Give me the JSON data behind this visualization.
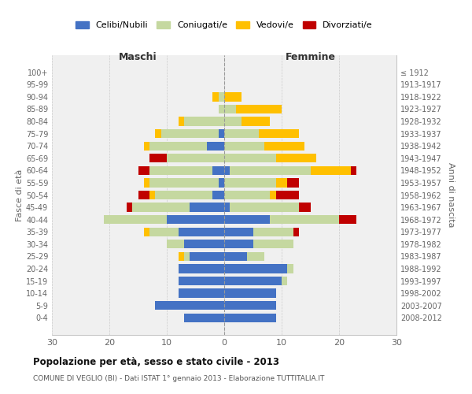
{
  "age_groups": [
    "0-4",
    "5-9",
    "10-14",
    "15-19",
    "20-24",
    "25-29",
    "30-34",
    "35-39",
    "40-44",
    "45-49",
    "50-54",
    "55-59",
    "60-64",
    "65-69",
    "70-74",
    "75-79",
    "80-84",
    "85-89",
    "90-94",
    "95-99",
    "100+"
  ],
  "birth_years": [
    "2008-2012",
    "2003-2007",
    "1998-2002",
    "1993-1997",
    "1988-1992",
    "1983-1987",
    "1978-1982",
    "1973-1977",
    "1968-1972",
    "1963-1967",
    "1958-1962",
    "1953-1957",
    "1948-1952",
    "1943-1947",
    "1938-1942",
    "1933-1937",
    "1928-1932",
    "1923-1927",
    "1918-1922",
    "1913-1917",
    "≤ 1912"
  ],
  "maschi": {
    "celibi": [
      7,
      12,
      8,
      8,
      8,
      6,
      7,
      8,
      10,
      6,
      2,
      1,
      2,
      0,
      3,
      1,
      0,
      0,
      0,
      0,
      0
    ],
    "coniugati": [
      0,
      0,
      0,
      0,
      0,
      1,
      3,
      5,
      11,
      10,
      10,
      12,
      11,
      10,
      10,
      10,
      7,
      1,
      1,
      0,
      0
    ],
    "vedovi": [
      0,
      0,
      0,
      0,
      0,
      1,
      0,
      1,
      0,
      0,
      1,
      1,
      0,
      0,
      1,
      1,
      1,
      0,
      1,
      0,
      0
    ],
    "divorziati": [
      0,
      0,
      0,
      0,
      0,
      0,
      0,
      0,
      0,
      1,
      2,
      0,
      2,
      3,
      0,
      0,
      0,
      0,
      0,
      0,
      0
    ]
  },
  "femmine": {
    "nubili": [
      9,
      9,
      9,
      10,
      11,
      4,
      5,
      5,
      8,
      1,
      0,
      0,
      1,
      0,
      0,
      0,
      0,
      0,
      0,
      0,
      0
    ],
    "coniugate": [
      0,
      0,
      0,
      1,
      1,
      3,
      7,
      7,
      12,
      12,
      8,
      9,
      14,
      9,
      7,
      6,
      3,
      2,
      0,
      0,
      0
    ],
    "vedove": [
      0,
      0,
      0,
      0,
      0,
      0,
      0,
      0,
      0,
      0,
      1,
      2,
      7,
      7,
      7,
      7,
      5,
      8,
      3,
      0,
      0
    ],
    "divorziate": [
      0,
      0,
      0,
      0,
      0,
      0,
      0,
      1,
      3,
      2,
      4,
      2,
      1,
      0,
      0,
      0,
      0,
      0,
      0,
      0,
      0
    ]
  },
  "color_celibe": "#4472c4",
  "color_coniugato": "#c5d8a0",
  "color_vedovo": "#ffc000",
  "color_divorziato": "#c00000",
  "xlim": 30,
  "title": "Popolazione per età, sesso e stato civile - 2013",
  "subtitle": "COMUNE DI VEGLIO (BI) - Dati ISTAT 1° gennaio 2013 - Elaborazione TUTTITALIA.IT",
  "xlabel_maschi": "Maschi",
  "xlabel_femmine": "Femmine",
  "ylabel": "Fasce di età",
  "ylabel2": "Anni di nascita",
  "legend_labels": [
    "Celibi/Nubili",
    "Coniugati/e",
    "Vedovi/e",
    "Divorziati/e"
  ],
  "bg_color": "#ffffff",
  "plot_bg_color": "#f0f0f0",
  "grid_color": "#cccccc"
}
